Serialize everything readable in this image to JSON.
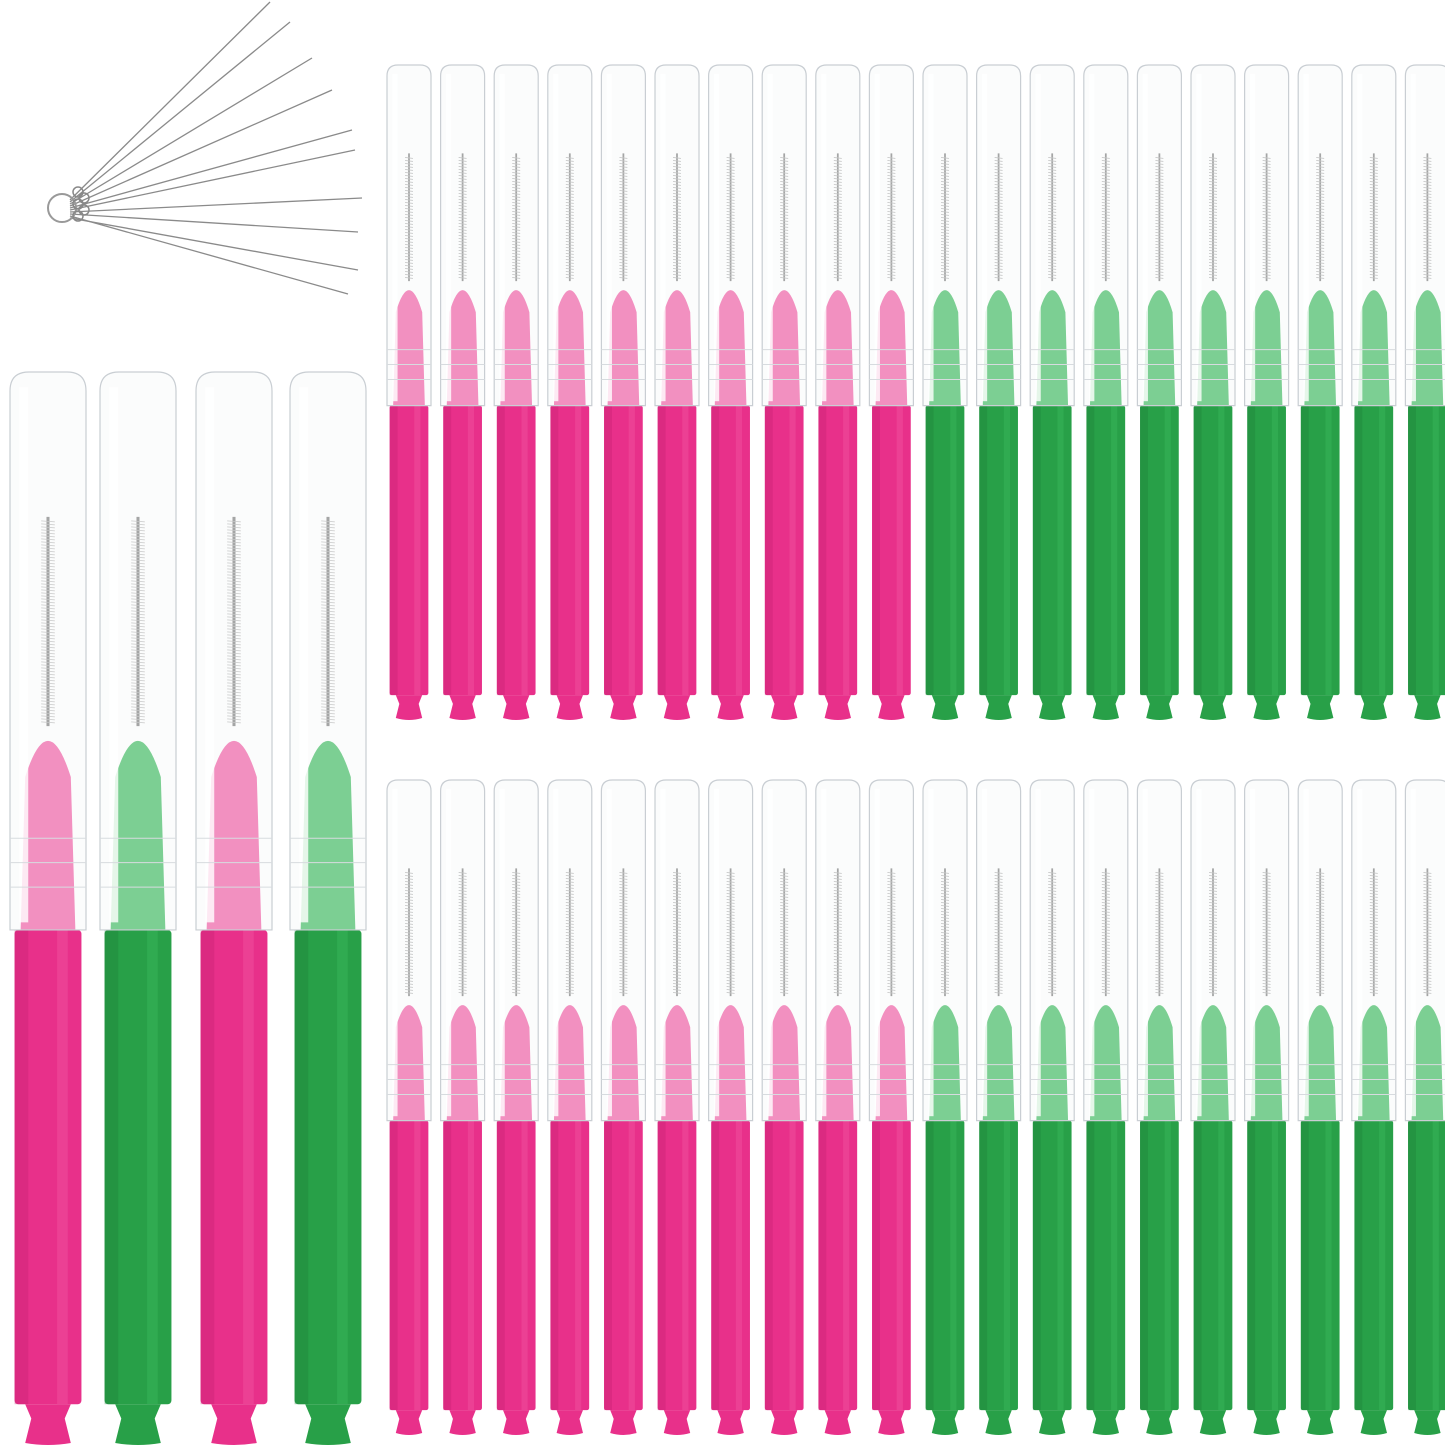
{
  "product": "interdental-brush-set",
  "colors": {
    "pink": "#e8308a",
    "pink_light": "#f25aa3",
    "pink_dark": "#c41f70",
    "green": "#28a048",
    "green_light": "#3dbb5e",
    "green_dark": "#1c7f38",
    "cap": "#f3f5f7",
    "wire": "#7a7a7a",
    "needle": "#8a8a8a"
  },
  "large_brushes": [
    "pink",
    "green",
    "pink",
    "green"
  ],
  "small_rows": [
    {
      "groups": [
        {
          "color": "pink",
          "count": 10
        },
        {
          "color": "green",
          "count": 10
        }
      ]
    },
    {
      "groups": [
        {
          "color": "pink",
          "count": 10
        },
        {
          "color": "green",
          "count": 10
        }
      ]
    }
  ],
  "cleaning_needles": {
    "count": 10
  }
}
